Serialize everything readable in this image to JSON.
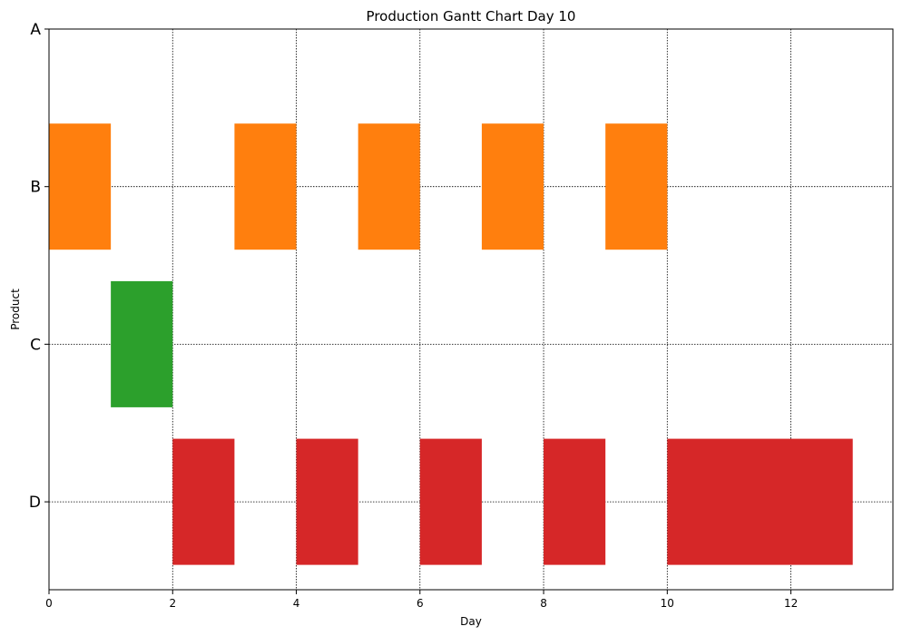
{
  "chart_data": {
    "type": "gantt",
    "title": "Production Gantt Chart Day 10",
    "xlabel": "Day",
    "ylabel": "Product",
    "xlim": [
      0,
      13.65
    ],
    "xticks": [
      0,
      2,
      4,
      6,
      8,
      10,
      12
    ],
    "categories": [
      "A",
      "B",
      "C",
      "D"
    ],
    "grid": true,
    "colors": {
      "B": "#ff7f0e",
      "C": "#2ca02c",
      "D": "#d62728"
    },
    "tasks": [
      {
        "product": "B",
        "start": 0,
        "end": 1
      },
      {
        "product": "B",
        "start": 3,
        "end": 4
      },
      {
        "product": "B",
        "start": 5,
        "end": 6
      },
      {
        "product": "B",
        "start": 7,
        "end": 8
      },
      {
        "product": "B",
        "start": 9,
        "end": 10
      },
      {
        "product": "C",
        "start": 1,
        "end": 2
      },
      {
        "product": "D",
        "start": 2,
        "end": 3
      },
      {
        "product": "D",
        "start": 4,
        "end": 5
      },
      {
        "product": "D",
        "start": 6,
        "end": 7
      },
      {
        "product": "D",
        "start": 8,
        "end": 9
      },
      {
        "product": "D",
        "start": 10,
        "end": 13
      }
    ]
  }
}
